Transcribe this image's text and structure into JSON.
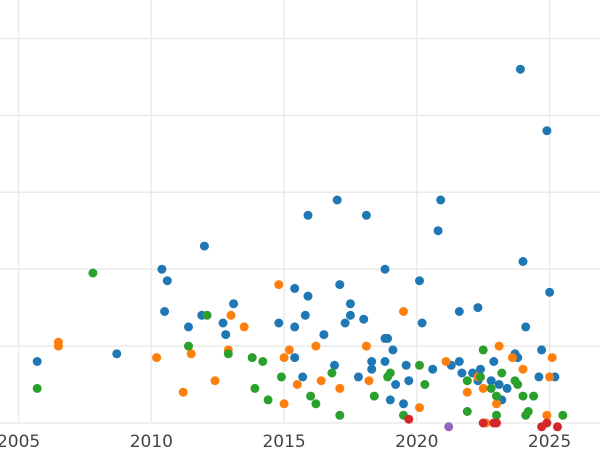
{
  "chart_data": {
    "type": "scatter",
    "title": "",
    "xlabel": "",
    "ylabel": "",
    "xlim": [
      2004.3,
      2026.9
    ],
    "ylim": [
      0,
      11
    ],
    "x_ticks": [
      2005,
      2010,
      2015,
      2020,
      2025
    ],
    "x_tick_labels": [
      "2005",
      "2010",
      "2015",
      "2020",
      "2025"
    ],
    "y_gridlines": [
      0,
      2,
      4,
      6,
      8,
      10
    ],
    "grid": true,
    "legend": "none",
    "series": [
      {
        "color": "#1f77b4",
        "points": [
          [
            2005.7,
            1.6
          ],
          [
            2008.7,
            1.8
          ],
          [
            2010.4,
            4.0
          ],
          [
            2010.6,
            3.7
          ],
          [
            2010.5,
            2.9
          ],
          [
            2011.4,
            2.5
          ],
          [
            2011.9,
            2.8
          ],
          [
            2012.0,
            4.6
          ],
          [
            2012.7,
            2.6
          ],
          [
            2012.8,
            2.3
          ],
          [
            2013.1,
            3.1
          ],
          [
            2014.8,
            2.6
          ],
          [
            2015.4,
            3.5
          ],
          [
            2015.4,
            2.5
          ],
          [
            2015.4,
            1.7
          ],
          [
            2015.7,
            1.2
          ],
          [
            2015.8,
            2.8
          ],
          [
            2015.9,
            3.3
          ],
          [
            2015.9,
            5.4
          ],
          [
            2016.5,
            2.3
          ],
          [
            2016.9,
            1.5
          ],
          [
            2017.0,
            5.8
          ],
          [
            2017.1,
            3.6
          ],
          [
            2017.3,
            2.6
          ],
          [
            2017.5,
            3.1
          ],
          [
            2017.5,
            2.8
          ],
          [
            2017.8,
            1.2
          ],
          [
            2018.0,
            2.7
          ],
          [
            2018.1,
            5.4
          ],
          [
            2018.3,
            1.6
          ],
          [
            2018.3,
            1.4
          ],
          [
            2018.8,
            4.0
          ],
          [
            2018.8,
            2.2
          ],
          [
            2018.8,
            1.6
          ],
          [
            2018.9,
            2.2
          ],
          [
            2019.0,
            0.6
          ],
          [
            2019.1,
            1.9
          ],
          [
            2019.2,
            1.0
          ],
          [
            2019.5,
            0.5
          ],
          [
            2019.6,
            1.5
          ],
          [
            2019.7,
            1.1
          ],
          [
            2020.1,
            3.7
          ],
          [
            2020.2,
            2.6
          ],
          [
            2020.6,
            1.4
          ],
          [
            2020.8,
            5.0
          ],
          [
            2020.9,
            5.8
          ],
          [
            2021.3,
            1.5
          ],
          [
            2021.6,
            2.9
          ],
          [
            2021.6,
            1.6
          ],
          [
            2021.7,
            1.3
          ],
          [
            2022.1,
            1.3
          ],
          [
            2022.3,
            3.0
          ],
          [
            2022.3,
            1.1
          ],
          [
            2022.4,
            1.4
          ],
          [
            2022.8,
            1.1
          ],
          [
            2022.9,
            1.6
          ],
          [
            2023.1,
            1.0
          ],
          [
            2023.2,
            0.6
          ],
          [
            2023.4,
            0.9
          ],
          [
            2023.7,
            1.8
          ],
          [
            2023.8,
            1.7
          ],
          [
            2023.9,
            9.2
          ],
          [
            2024.0,
            4.2
          ],
          [
            2024.1,
            2.5
          ],
          [
            2024.7,
            1.9
          ],
          [
            2024.6,
            1.2
          ],
          [
            2024.9,
            7.6
          ],
          [
            2025.0,
            3.4
          ],
          [
            2025.2,
            1.2
          ]
        ]
      },
      {
        "color": "#ff7f0e",
        "points": [
          [
            2006.5,
            2.1
          ],
          [
            2006.5,
            2.0
          ],
          [
            2010.2,
            1.7
          ],
          [
            2011.2,
            0.8
          ],
          [
            2011.5,
            1.8
          ],
          [
            2012.4,
            1.1
          ],
          [
            2012.9,
            1.9
          ],
          [
            2013.0,
            2.8
          ],
          [
            2013.5,
            2.5
          ],
          [
            2014.8,
            3.6
          ],
          [
            2015.0,
            1.7
          ],
          [
            2015.0,
            0.5
          ],
          [
            2015.2,
            1.9
          ],
          [
            2015.5,
            1.0
          ],
          [
            2016.2,
            2.0
          ],
          [
            2016.4,
            1.1
          ],
          [
            2017.1,
            0.9
          ],
          [
            2018.1,
            2.0
          ],
          [
            2018.2,
            1.1
          ],
          [
            2019.5,
            2.9
          ],
          [
            2020.1,
            0.4
          ],
          [
            2021.1,
            1.6
          ],
          [
            2021.9,
            0.8
          ],
          [
            2022.3,
            1.2
          ],
          [
            2022.5,
            0.9
          ],
          [
            2022.6,
            0.0
          ],
          [
            2023.0,
            0.5
          ],
          [
            2023.1,
            2.0
          ],
          [
            2023.6,
            1.7
          ],
          [
            2024.0,
            1.4
          ],
          [
            2024.9,
            0.2
          ],
          [
            2025.0,
            1.2
          ],
          [
            2025.1,
            1.7
          ]
        ]
      },
      {
        "color": "#2ca02c",
        "points": [
          [
            2005.7,
            0.9
          ],
          [
            2007.8,
            3.9
          ],
          [
            2011.4,
            2.0
          ],
          [
            2012.1,
            2.8
          ],
          [
            2012.9,
            1.8
          ],
          [
            2013.8,
            1.7
          ],
          [
            2013.9,
            0.9
          ],
          [
            2014.2,
            1.6
          ],
          [
            2014.4,
            0.6
          ],
          [
            2014.9,
            1.2
          ],
          [
            2016.0,
            0.7
          ],
          [
            2016.2,
            0.5
          ],
          [
            2016.8,
            1.3
          ],
          [
            2017.1,
            0.2
          ],
          [
            2018.4,
            0.7
          ],
          [
            2018.9,
            1.2
          ],
          [
            2019.0,
            1.3
          ],
          [
            2019.5,
            0.2
          ],
          [
            2020.1,
            1.5
          ],
          [
            2020.3,
            1.0
          ],
          [
            2021.9,
            1.1
          ],
          [
            2021.9,
            0.3
          ],
          [
            2022.4,
            1.2
          ],
          [
            2022.5,
            1.9
          ],
          [
            2022.8,
            0.9
          ],
          [
            2023.0,
            0.7
          ],
          [
            2023.0,
            0.2
          ],
          [
            2023.2,
            1.3
          ],
          [
            2023.7,
            1.1
          ],
          [
            2023.8,
            1.0
          ],
          [
            2024.0,
            0.7
          ],
          [
            2024.2,
            0.3
          ],
          [
            2024.1,
            0.2
          ],
          [
            2024.4,
            0.7
          ],
          [
            2025.5,
            0.2
          ]
        ]
      },
      {
        "color": "#d62728",
        "points": [
          [
            2019.7,
            0.1
          ],
          [
            2022.5,
            0.0
          ],
          [
            2022.9,
            0.0
          ],
          [
            2023.0,
            0.0
          ],
          [
            2024.7,
            -0.1
          ],
          [
            2024.9,
            0.0
          ],
          [
            2025.3,
            -0.1
          ]
        ]
      },
      {
        "color": "#9467bd",
        "points": [
          [
            2021.2,
            -0.1
          ]
        ]
      }
    ]
  }
}
